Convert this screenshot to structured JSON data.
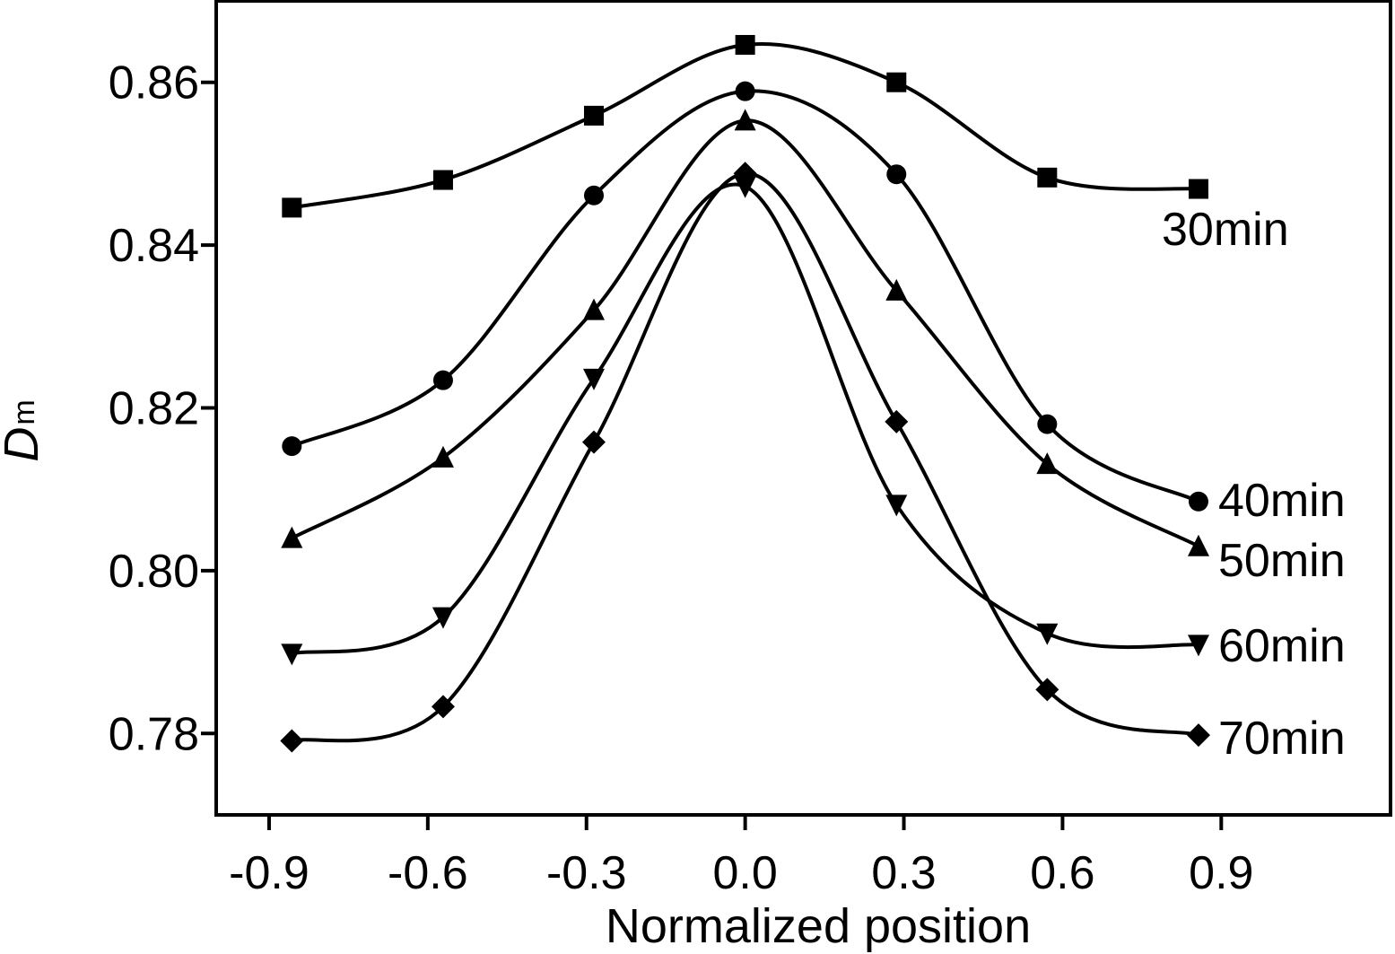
{
  "chart_data": {
    "type": "line",
    "title": "",
    "xlabel": "Normalized position",
    "ylabel": "D",
    "ylabel_subscript": "m",
    "xlim": [
      -1.0,
      1.22
    ],
    "ylim": [
      0.77,
      0.87
    ],
    "xticks": [
      -0.9,
      -0.6,
      -0.3,
      0.0,
      0.3,
      0.6,
      0.9
    ],
    "xtick_labels": [
      "-0.9",
      "-0.6",
      "-0.3",
      "0.0",
      "0.3",
      "0.6",
      "0.9"
    ],
    "yticks": [
      0.78,
      0.8,
      0.82,
      0.84,
      0.86
    ],
    "ytick_labels": [
      "0.78",
      "0.80",
      "0.82",
      "0.84",
      "0.86"
    ],
    "grid": false,
    "legend": "inline labels at right end of curves",
    "x": [
      -0.857,
      -0.571,
      -0.286,
      0.0,
      0.286,
      0.571,
      0.857
    ],
    "series": [
      {
        "name": "30min",
        "marker": "square",
        "values": [
          0.8446,
          0.848,
          0.8559,
          0.8646,
          0.86,
          0.8483,
          0.8469
        ]
      },
      {
        "name": "40min",
        "marker": "circle",
        "values": [
          0.8153,
          0.8234,
          0.8461,
          0.8589,
          0.8487,
          0.818,
          0.8085
        ]
      },
      {
        "name": "50min",
        "marker": "triangle-up",
        "values": [
          0.804,
          0.8139,
          0.832,
          0.8553,
          0.8344,
          0.8131,
          0.803
        ]
      },
      {
        "name": "60min",
        "marker": "triangle-down",
        "values": [
          0.7898,
          0.7943,
          0.8236,
          0.8472,
          0.8081,
          0.7923,
          0.7909
        ]
      },
      {
        "name": "70min",
        "marker": "diamond",
        "values": [
          0.7791,
          0.7833,
          0.8158,
          0.8488,
          0.8183,
          0.7854,
          0.7798
        ]
      }
    ],
    "color": "#000000"
  }
}
